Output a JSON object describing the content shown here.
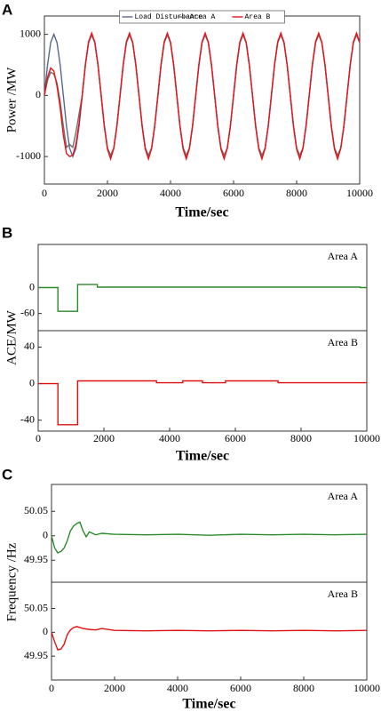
{
  "chart_data": [
    {
      "type": "line",
      "panel_label": "A",
      "xlabel": "Time/sec",
      "ylabel": "Power /MW",
      "xlim": [
        0,
        10000
      ],
      "xticks": [
        0,
        2000,
        4000,
        6000,
        8000,
        10000
      ],
      "legend": "top",
      "subplots": [
        {
          "ylim": [
            -1450,
            1300
          ],
          "yticks": [
            -1000,
            0,
            1000
          ],
          "x": [
            0,
            100,
            200,
            300,
            400,
            500,
            600,
            700,
            800,
            900,
            1000,
            1100,
            1200,
            1300,
            1400,
            1500,
            1600,
            1700,
            1800,
            1900,
            2000,
            2100,
            2200,
            2300,
            2400,
            2500,
            2600,
            2700,
            2800,
            2900,
            3000,
            3100,
            3200,
            3300,
            3400,
            3500,
            3600,
            3700,
            3800,
            3900,
            4000,
            4100,
            4200,
            4300,
            4400,
            4500,
            4600,
            4700,
            4800,
            4900,
            5000,
            5100,
            5200,
            5300,
            5400,
            5500,
            5600,
            5700,
            5800,
            5900,
            6000,
            6100,
            6200,
            6300,
            6400,
            6500,
            6600,
            6700,
            6800,
            6900,
            7000,
            7100,
            7200,
            7300,
            7400,
            7500,
            7600,
            7700,
            7800,
            7900,
            8000,
            8100,
            8200,
            8300,
            8400,
            8500,
            8600,
            8700,
            8800,
            8900,
            9000,
            9100,
            9200,
            9300,
            9400,
            9500,
            9600,
            9700,
            9800,
            9900,
            10000
          ],
          "series": [
            {
              "name": "Load Disturbance",
              "color": "#5a6890",
              "values": [
                0,
                500,
                866,
                1000,
                866,
                500,
                0,
                -500,
                -866,
                -1000,
                -866,
                -500,
                0,
                500,
                866,
                1000,
                866,
                500,
                0,
                -500,
                -866,
                -1000,
                -866,
                -500,
                0,
                500,
                866,
                1000,
                866,
                500,
                0,
                -500,
                -866,
                -1000,
                -866,
                -500,
                0,
                500,
                866,
                1000,
                866,
                500,
                0,
                -500,
                -866,
                -1000,
                -866,
                -500,
                0,
                500,
                866,
                1000,
                866,
                500,
                0,
                -500,
                -866,
                -1000,
                -866,
                -500,
                0,
                500,
                866,
                1000,
                866,
                500,
                0,
                -500,
                -866,
                -1000,
                -866,
                -500,
                0,
                500,
                866,
                1000,
                866,
                500,
                0,
                -500,
                -866,
                -1000,
                -866,
                -500,
                0,
                500,
                866,
                1000,
                866,
                500,
                0,
                -500,
                -866,
                -1000,
                -866,
                -500,
                0,
                500,
                866,
                1000,
                866
              ]
            },
            {
              "name": "Area A",
              "color": "#707070",
              "values": [
                0,
                250,
                380,
                350,
                200,
                -100,
                -500,
                -850,
                -800,
                -850,
                -600,
                -300,
                0,
                490,
                860,
                990,
                860,
                490,
                0,
                -490,
                -860,
                -980,
                -860,
                -490,
                0,
                490,
                860,
                990,
                860,
                490,
                0,
                -490,
                -860,
                -980,
                -860,
                -490,
                0,
                490,
                860,
                990,
                860,
                490,
                0,
                -490,
                -860,
                -980,
                -860,
                -490,
                0,
                490,
                860,
                990,
                860,
                490,
                0,
                -490,
                -860,
                -980,
                -860,
                -490,
                0,
                490,
                860,
                990,
                860,
                490,
                0,
                -490,
                -860,
                -980,
                -860,
                -490,
                0,
                490,
                860,
                990,
                860,
                490,
                0,
                -490,
                -860,
                -980,
                -860,
                -490,
                0,
                490,
                860,
                990,
                860,
                490,
                0,
                -490,
                -860,
                -980,
                -860,
                -490,
                0,
                490,
                860,
                990,
                860
              ]
            },
            {
              "name": "Area B",
              "color": "#e8141c",
              "values": [
                0,
                300,
                450,
                400,
                150,
                -200,
                -650,
                -950,
                -1000,
                -980,
                -800,
                -450,
                0,
                510,
                880,
                1020,
                870,
                500,
                0,
                -510,
                -880,
                -1040,
                -870,
                -500,
                0,
                510,
                880,
                1020,
                870,
                500,
                0,
                -510,
                -880,
                -1040,
                -870,
                -500,
                0,
                510,
                880,
                1020,
                870,
                500,
                0,
                -510,
                -880,
                -1040,
                -870,
                -500,
                0,
                510,
                880,
                1020,
                870,
                500,
                0,
                -510,
                -880,
                -1040,
                -870,
                -500,
                0,
                510,
                880,
                1020,
                870,
                500,
                0,
                -510,
                -880,
                -1040,
                -870,
                -500,
                0,
                510,
                880,
                1020,
                870,
                500,
                0,
                -510,
                -880,
                -1040,
                -870,
                -500,
                0,
                510,
                880,
                1020,
                870,
                500,
                0,
                -510,
                -880,
                -1040,
                -870,
                -500,
                0,
                510,
                880,
                1020,
                870
              ]
            }
          ]
        }
      ]
    },
    {
      "type": "line",
      "panel_label": "B",
      "xlabel": "Time/sec",
      "ylabel": "ACE/MW",
      "xlim": [
        0,
        10000
      ],
      "xticks": [
        0,
        2000,
        4000,
        6000,
        8000,
        10000
      ],
      "subplots": [
        {
          "annotation": "Area A",
          "ylim": [
            -100,
            100
          ],
          "yticks": [
            -60,
            0
          ],
          "x": [
            0,
            600,
            600,
            1200,
            1200,
            1800,
            1800,
            9800,
            9800,
            10000
          ],
          "series": [
            {
              "name": "Area A",
              "color": "#2a8a2a",
              "values": [
                0,
                0,
                -55,
                -55,
                7,
                7,
                1,
                1,
                0,
                0
              ]
            }
          ]
        },
        {
          "annotation": "Area B",
          "ylim": [
            -52,
            58
          ],
          "yticks": [
            -40,
            0,
            40
          ],
          "x": [
            0,
            600,
            600,
            1200,
            1200,
            3600,
            3600,
            4400,
            4400,
            5000,
            5000,
            5700,
            5700,
            7300,
            7300,
            10000
          ],
          "series": [
            {
              "name": "Area B",
              "color": "#e01010",
              "values": [
                0,
                0,
                -45,
                -45,
                3,
                3,
                1,
                1,
                3,
                3,
                1,
                1,
                3,
                3,
                1,
                1
              ]
            }
          ]
        }
      ]
    },
    {
      "type": "line",
      "panel_label": "C",
      "xlabel": "Time/sec",
      "ylabel": "Frequency /Hz",
      "xlim": [
        0,
        10000
      ],
      "xticks": [
        0,
        2000,
        4000,
        6000,
        8000,
        10000
      ],
      "subplots": [
        {
          "annotation": "Area A",
          "ylim": [
            49.905,
            50.105
          ],
          "yticks": [
            49.95,
            {
              "value": 50,
              "label": "0"
            },
            50.05
          ],
          "x": [
            0,
            100,
            200,
            300,
            400,
            500,
            600,
            700,
            800,
            900,
            1000,
            1100,
            1200,
            1400,
            1600,
            2000,
            3000,
            4000,
            5000,
            6000,
            7000,
            8000,
            9000,
            10000
          ],
          "series": [
            {
              "name": "Area A",
              "color": "#2a8a2a",
              "values": [
                50,
                49.975,
                49.965,
                49.968,
                49.975,
                49.99,
                50.01,
                50.02,
                50.025,
                50.028,
                50.01,
                49.998,
                50.008,
                50.002,
                50.005,
                50.003,
                50.002,
                50.003,
                50.001,
                50.003,
                50.002,
                50.003,
                50.002,
                50.003
              ]
            }
          ]
        },
        {
          "annotation": "Area B",
          "ylim": [
            49.9,
            50.105
          ],
          "yticks": [
            49.95,
            {
              "value": 50,
              "label": "0"
            },
            50.05
          ],
          "x": [
            0,
            100,
            200,
            300,
            400,
            500,
            600,
            700,
            800,
            900,
            1000,
            1200,
            1400,
            1600,
            2000,
            3000,
            4000,
            5000,
            6000,
            7000,
            8000,
            9000,
            10000
          ],
          "series": [
            {
              "name": "Area B",
              "color": "#e01010",
              "values": [
                50,
                49.98,
                49.963,
                49.965,
                49.975,
                49.995,
                50.005,
                50.01,
                50.012,
                50.01,
                50.008,
                50.006,
                50.005,
                50.008,
                50.004,
                50.003,
                50.004,
                50.003,
                50.004,
                50.003,
                50.004,
                50.003,
                50.004
              ]
            }
          ]
        }
      ]
    }
  ]
}
